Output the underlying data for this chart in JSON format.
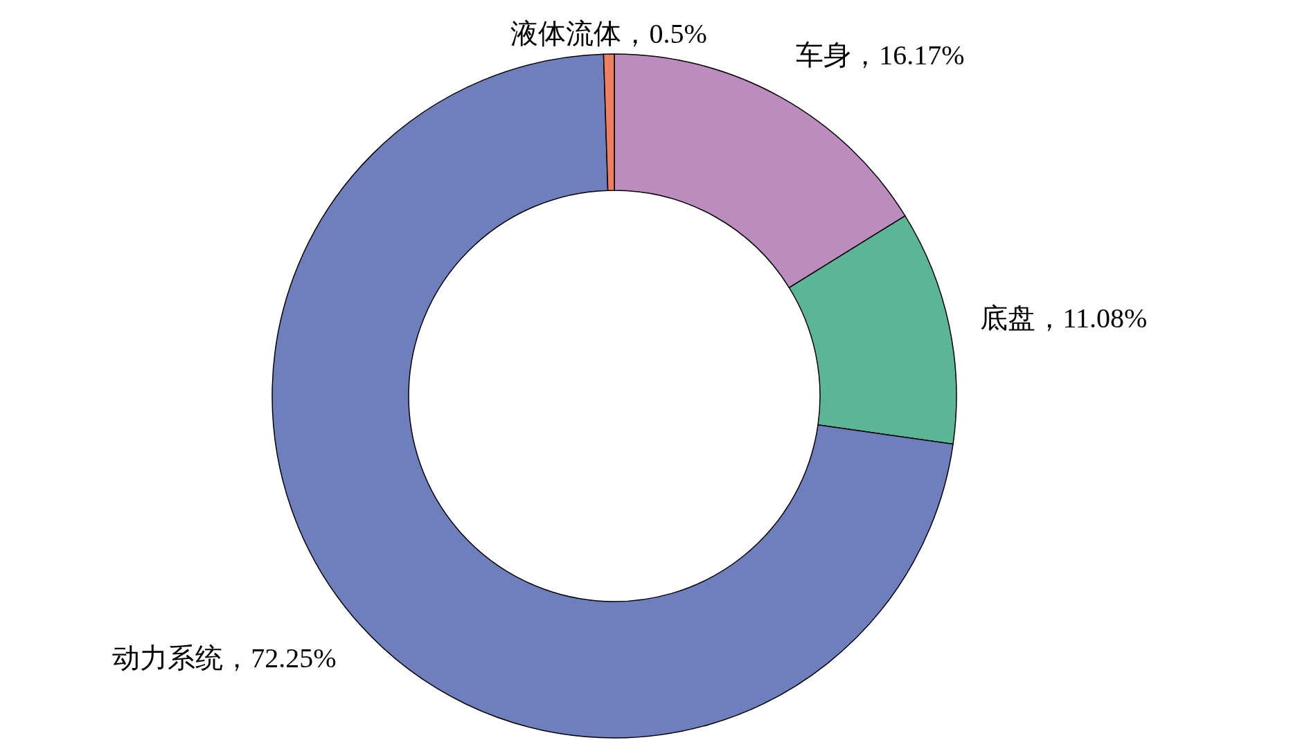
{
  "chart_data": {
    "type": "donut",
    "categories": [
      "车身",
      "底盘",
      "动力系统",
      "液体流体"
    ],
    "values": [
      16.17,
      11.08,
      72.25,
      0.5
    ],
    "colors": [
      "#bc8cbf",
      "#5bb597",
      "#6f7fbd",
      "#ee7f62"
    ],
    "value_labels": [
      "16.17%",
      "11.08%",
      "72.25%",
      "0.5%"
    ],
    "legend": false
  }
}
